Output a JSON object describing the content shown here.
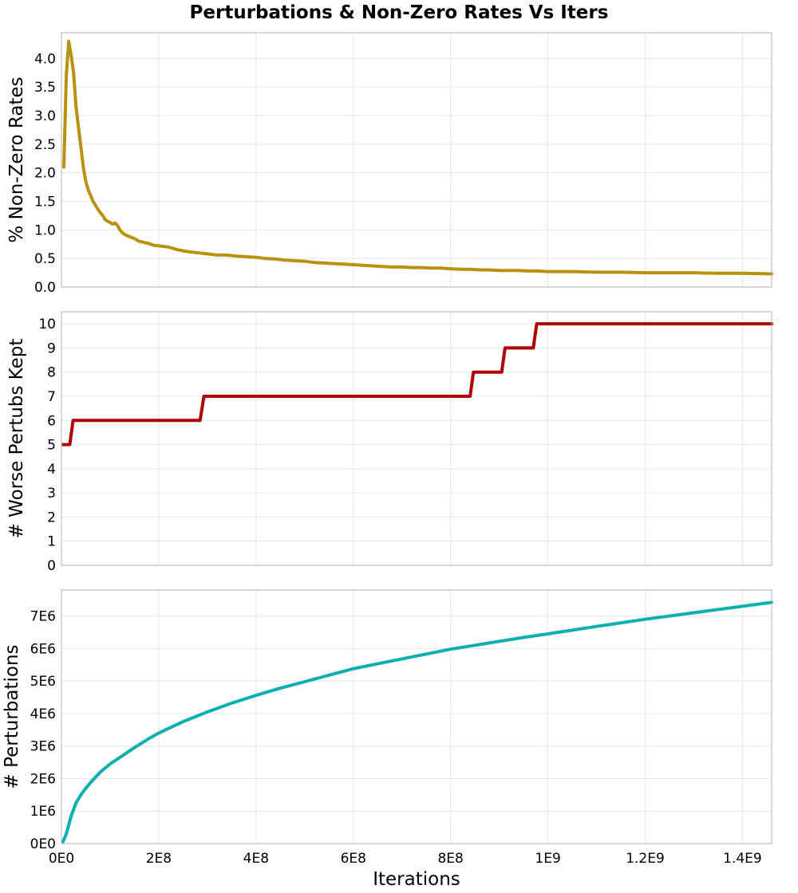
{
  "figure": {
    "title": "Perturbations & Non-Zero Rates Vs Iters",
    "xlabel": "Iterations"
  },
  "chart_data": [
    {
      "type": "line",
      "ylabel": "% Non-Zero Rates",
      "xlim": [
        0,
        1460000000
      ],
      "ylim": [
        0,
        4.45
      ],
      "x_ticks": [
        0,
        200000000,
        400000000,
        600000000,
        800000000,
        1000000000,
        1200000000,
        1400000000
      ],
      "y_ticks": [
        0.0,
        0.5,
        1.0,
        1.5,
        2.0,
        2.5,
        3.0,
        3.5,
        4.0
      ],
      "y_tick_labels": [
        "0.0",
        "0.5",
        "1.0",
        "1.5",
        "2.0",
        "2.5",
        "3.0",
        "3.5",
        "4.0"
      ],
      "grid": true,
      "color": "#b8920c",
      "series": [
        {
          "x": [
            5000000,
            10000000,
            15000000,
            20000000,
            25000000,
            30000000,
            35000000,
            40000000,
            45000000,
            50000000,
            55000000,
            60000000,
            65000000,
            70000000,
            75000000,
            80000000,
            85000000,
            90000000,
            95000000,
            100000000,
            105000000,
            110000000,
            115000000,
            120000000,
            125000000,
            130000000,
            135000000,
            140000000,
            150000000,
            160000000,
            170000000,
            180000000,
            190000000,
            200000000,
            220000000,
            240000000,
            260000000,
            280000000,
            300000000,
            320000000,
            340000000,
            360000000,
            380000000,
            400000000,
            420000000,
            440000000,
            460000000,
            480000000,
            500000000,
            520000000,
            540000000,
            560000000,
            580000000,
            600000000,
            620000000,
            640000000,
            660000000,
            680000000,
            700000000,
            720000000,
            740000000,
            760000000,
            780000000,
            800000000,
            820000000,
            840000000,
            860000000,
            880000000,
            900000000,
            920000000,
            940000000,
            960000000,
            980000000,
            1000000000,
            1050000000,
            1100000000,
            1150000000,
            1200000000,
            1250000000,
            1300000000,
            1350000000,
            1400000000,
            1460000000
          ],
          "y": [
            2.1,
            3.7,
            4.3,
            4.05,
            3.75,
            3.15,
            2.8,
            2.45,
            2.1,
            1.85,
            1.7,
            1.6,
            1.5,
            1.43,
            1.36,
            1.3,
            1.25,
            1.18,
            1.15,
            1.13,
            1.1,
            1.12,
            1.08,
            1.0,
            0.95,
            0.92,
            0.9,
            0.88,
            0.85,
            0.8,
            0.78,
            0.76,
            0.73,
            0.72,
            0.7,
            0.65,
            0.62,
            0.6,
            0.58,
            0.56,
            0.56,
            0.54,
            0.53,
            0.52,
            0.5,
            0.49,
            0.47,
            0.46,
            0.45,
            0.43,
            0.42,
            0.41,
            0.4,
            0.39,
            0.38,
            0.37,
            0.36,
            0.35,
            0.35,
            0.34,
            0.34,
            0.33,
            0.33,
            0.32,
            0.31,
            0.31,
            0.3,
            0.3,
            0.29,
            0.29,
            0.29,
            0.28,
            0.28,
            0.27,
            0.27,
            0.26,
            0.26,
            0.25,
            0.25,
            0.25,
            0.24,
            0.24,
            0.23
          ]
        }
      ]
    },
    {
      "type": "line",
      "ylabel": "# Worse Pertubs Kept",
      "xlim": [
        0,
        1460000000
      ],
      "ylim": [
        0,
        10.5
      ],
      "x_ticks": [
        0,
        200000000,
        400000000,
        600000000,
        800000000,
        1000000000,
        1200000000,
        1400000000
      ],
      "y_ticks": [
        0,
        1,
        2,
        3,
        4,
        5,
        6,
        7,
        8,
        9,
        10
      ],
      "y_tick_labels": [
        "0",
        "1",
        "2",
        "3",
        "4",
        "5",
        "6",
        "7",
        "8",
        "9",
        "10"
      ],
      "grid": true,
      "color": "#b00000",
      "series": [
        {
          "x": [
            3000000,
            17000000,
            24000000,
            285000000,
            293000000,
            840000000,
            847000000,
            905000000,
            912000000,
            970000000,
            977000000,
            1460000000
          ],
          "y": [
            5,
            5,
            6,
            6,
            7,
            7,
            8,
            8,
            9,
            9,
            10,
            10
          ]
        }
      ]
    },
    {
      "type": "line",
      "ylabel": "# Perturbations",
      "xlabel": "Iterations",
      "xlim": [
        0,
        1460000000
      ],
      "ylim": [
        0,
        7800000
      ],
      "x_ticks": [
        0,
        200000000,
        400000000,
        600000000,
        800000000,
        1000000000,
        1200000000,
        1400000000
      ],
      "x_tick_labels": [
        "0E0",
        "2E8",
        "4E8",
        "6E8",
        "8E8",
        "1E9",
        "1.2E9",
        "1.4E9"
      ],
      "y_ticks": [
        0,
        1000000,
        2000000,
        3000000,
        4000000,
        5000000,
        6000000,
        7000000
      ],
      "y_tick_labels": [
        "0E0",
        "1E6",
        "2E6",
        "3E6",
        "4E6",
        "5E6",
        "6E6",
        "7E6"
      ],
      "grid": true,
      "color": "#0ab0b0",
      "series": [
        {
          "x": [
            3000000,
            10000000,
            20000000,
            30000000,
            40000000,
            50000000,
            60000000,
            80000000,
            100000000,
            120000000,
            150000000,
            180000000,
            200000000,
            250000000,
            300000000,
            350000000,
            400000000,
            450000000,
            500000000,
            550000000,
            600000000,
            650000000,
            700000000,
            750000000,
            800000000,
            850000000,
            900000000,
            950000000,
            1000000000,
            1100000000,
            1200000000,
            1300000000,
            1400000000,
            1460000000
          ],
          "y": [
            50000,
            300000,
            850000,
            1250000,
            1500000,
            1700000,
            1880000,
            2200000,
            2450000,
            2650000,
            2950000,
            3230000,
            3400000,
            3750000,
            4050000,
            4320000,
            4560000,
            4780000,
            4980000,
            5180000,
            5380000,
            5530000,
            5680000,
            5830000,
            5980000,
            6100000,
            6220000,
            6340000,
            6450000,
            6680000,
            6900000,
            7100000,
            7300000,
            7420000
          ]
        }
      ]
    }
  ]
}
